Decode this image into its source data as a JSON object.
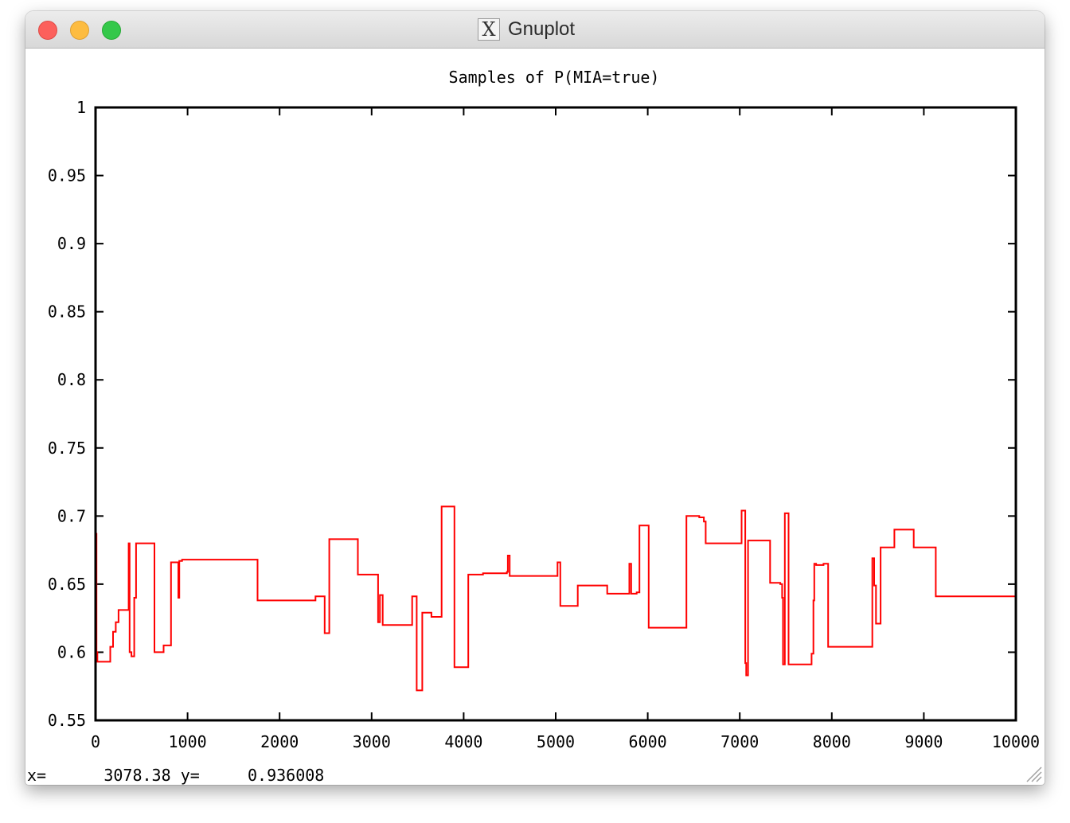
{
  "window": {
    "title": "Gnuplot",
    "icon": "x11-icon"
  },
  "status": {
    "x_label": "x=",
    "x_value": "3078.38",
    "y_label": "y=",
    "y_value": "0.936008"
  },
  "colors": {
    "series": "#ff0000",
    "axes": "#000000"
  },
  "chart_data": {
    "type": "line",
    "title": "Samples of P(MIA=true)",
    "xlabel": "",
    "ylabel": "",
    "xlim": [
      0,
      10000
    ],
    "ylim": [
      0.55,
      1
    ],
    "grid": false,
    "legend": "none",
    "xticks": [
      "0",
      "1000",
      "2000",
      "3000",
      "4000",
      "5000",
      "6000",
      "7000",
      "8000",
      "9000",
      "10000"
    ],
    "yticks": [
      "0.55",
      "0.6",
      "0.65",
      "0.7",
      "0.75",
      "0.8",
      "0.85",
      "0.9",
      "0.95",
      "1"
    ],
    "series": [
      {
        "style": "steps",
        "x": [
          0,
          10,
          20,
          160,
          190,
          220,
          250,
          360,
          370,
          390,
          420,
          440,
          460,
          500,
          640,
          740,
          820,
          900,
          910,
          940,
          1670,
          1760,
          2390,
          2420,
          2490,
          2540,
          2850,
          3070,
          3090,
          3120,
          3440,
          3490,
          3550,
          3650,
          3760,
          3900,
          4050,
          4210,
          4470,
          4480,
          4500,
          5010,
          5020,
          5050,
          5130,
          5240,
          5560,
          5800,
          5820,
          5880,
          5910,
          6010,
          6420,
          6560,
          6610,
          6630,
          7020,
          7060,
          7070,
          7090,
          7120,
          7330,
          7440,
          7460,
          7470,
          7490,
          7530,
          7610,
          7780,
          7800,
          7810,
          7830,
          7910,
          7960,
          8310,
          8440,
          8460,
          8480,
          8530,
          8610,
          8680,
          8890,
          9130,
          9600,
          9900,
          10000
        ],
        "y": [
          0.687,
          0.6,
          0.593,
          0.604,
          0.615,
          0.622,
          0.631,
          0.68,
          0.6,
          0.597,
          0.64,
          0.68,
          0.68,
          0.68,
          0.6,
          0.605,
          0.666,
          0.64,
          0.667,
          0.668,
          0.668,
          0.638,
          0.641,
          0.641,
          0.614,
          0.683,
          0.657,
          0.622,
          0.642,
          0.62,
          0.641,
          0.572,
          0.629,
          0.626,
          0.707,
          0.589,
          0.657,
          0.658,
          0.659,
          0.671,
          0.656,
          0.656,
          0.666,
          0.634,
          0.634,
          0.649,
          0.643,
          0.665,
          0.643,
          0.644,
          0.693,
          0.618,
          0.7,
          0.699,
          0.696,
          0.68,
          0.704,
          0.592,
          0.583,
          0.682,
          0.682,
          0.651,
          0.65,
          0.64,
          0.591,
          0.702,
          0.591,
          0.591,
          0.599,
          0.638,
          0.665,
          0.664,
          0.665,
          0.604,
          0.604,
          0.669,
          0.649,
          0.621,
          0.677,
          0.677,
          0.69,
          0.677,
          0.641,
          0.641,
          0.641,
          0.641
        ]
      }
    ]
  }
}
